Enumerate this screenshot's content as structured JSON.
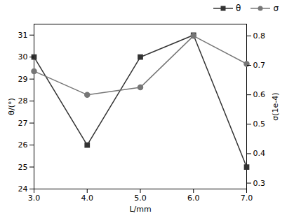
{
  "chart_data": {
    "type": "line",
    "x": [
      3,
      4,
      5,
      6,
      7
    ],
    "xlabel": "L/mm",
    "ylabel": "θ/(°)",
    "y2label": "σ(1e-4)",
    "xlim": [
      3,
      7
    ],
    "xticks": [
      3,
      4,
      5,
      6,
      7
    ],
    "ylim": [
      24,
      31.5
    ],
    "yticks": [
      24,
      25,
      26,
      27,
      28,
      29,
      30,
      31
    ],
    "y2lim": [
      0.28,
      0.84
    ],
    "y2ticks": [
      0.3,
      0.4,
      0.5,
      0.6,
      0.7,
      0.8
    ],
    "legend": "upper right",
    "grid": false,
    "series": [
      {
        "name": "θ",
        "color": "#333333",
        "marker": "square",
        "values": [
          30,
          26,
          30,
          31,
          25
        ]
      },
      {
        "name": "σ",
        "color": "#777777",
        "marker": "circle",
        "axis": "y2",
        "values": [
          0.68,
          0.6,
          0.625,
          0.8,
          0.705
        ]
      }
    ]
  }
}
